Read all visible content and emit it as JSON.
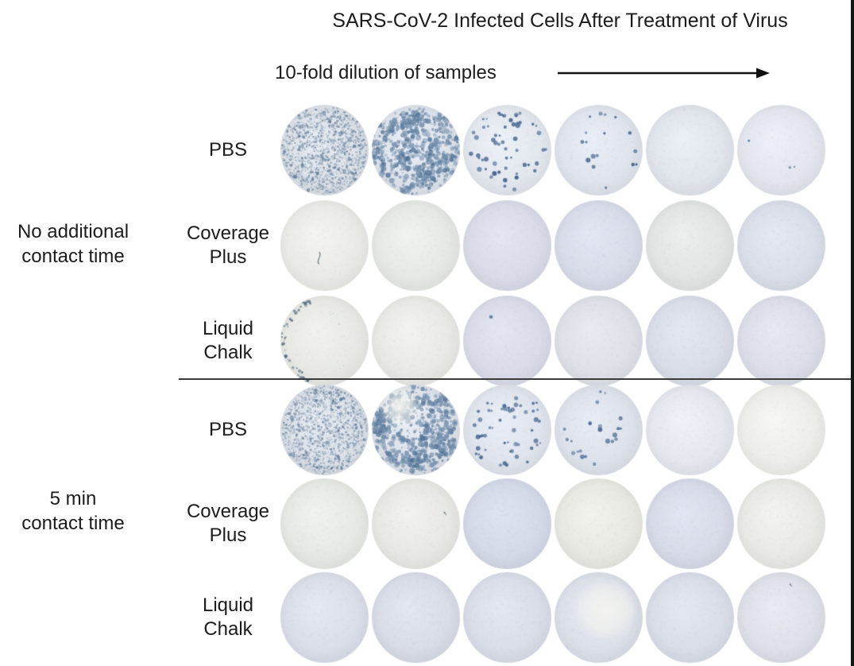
{
  "colors": {
    "background": "#ffffff",
    "text": "#1c1c1c",
    "divider": "#3a3a3a",
    "frame_border": "#161616",
    "arrow": "#111111",
    "plaque_dark": "#40608b",
    "plaque_mid": "#5d7d9f",
    "plaque_light": "#8aa0b5"
  },
  "figure": {
    "title": "SARS-CoV-2 Infected Cells After Treatment of Virus",
    "dilution_label": "10-fold dilution of samples",
    "dilution_arrow_icon": "right-arrow",
    "column_count": 6,
    "groups": [
      {
        "label_lines": [
          "No additional",
          "contact time"
        ],
        "rows": [
          {
            "label_lines": [
              "PBS"
            ],
            "wells": [
              {
                "tint": "#dee3e9",
                "pattern": "dense-fine",
                "count": 1400
              },
              {
                "tint": "#dfe4ec",
                "pattern": "dense-coarse",
                "count": 300
              },
              {
                "tint": "#e3e7ee",
                "pattern": "moderate",
                "count": 46
              },
              {
                "tint": "#e0e4ed",
                "pattern": "sparse",
                "count": 13
              },
              {
                "tint": "#e1e5ec",
                "pattern": "none",
                "count": 0
              },
              {
                "tint": "#e3e6ee",
                "pattern": "trace",
                "count": 2
              }
            ]
          },
          {
            "label_lines": [
              "Coverage",
              "Plus"
            ],
            "wells": [
              {
                "tint": "#eaebe7",
                "pattern": "none",
                "count": 0,
                "artifacts": [
                  {
                    "type": "fiber",
                    "x": 0.44,
                    "y": 0.64
                  }
                ]
              },
              {
                "tint": "#e7e9e7",
                "pattern": "none",
                "count": 0
              },
              {
                "tint": "#dadde9",
                "pattern": "none",
                "count": 0
              },
              {
                "tint": "#d9ddea",
                "pattern": "none",
                "count": 0
              },
              {
                "tint": "#e3e5e5",
                "pattern": "none",
                "count": 0
              },
              {
                "tint": "#dbdfe9",
                "pattern": "none",
                "count": 0
              }
            ]
          },
          {
            "label_lines": [
              "Liquid",
              "Chalk"
            ],
            "wells": [
              {
                "tint": "#e8e9e5",
                "pattern": "edge",
                "count": 42
              },
              {
                "tint": "#e9eae6",
                "pattern": "none",
                "count": 0
              },
              {
                "tint": "#dadde9",
                "pattern": "trace",
                "count": 1
              },
              {
                "tint": "#dee2e8",
                "pattern": "none",
                "count": 0
              },
              {
                "tint": "#dadee9",
                "pattern": "none",
                "count": 0
              },
              {
                "tint": "#dcdfe9",
                "pattern": "none",
                "count": 0
              }
            ]
          }
        ]
      },
      {
        "label_lines": [
          "5 min",
          "contact time"
        ],
        "rows": [
          {
            "label_lines": [
              "PBS"
            ],
            "wells": [
              {
                "tint": "#dde2e9",
                "pattern": "dense-fine",
                "count": 1350
              },
              {
                "tint": "#dee3eb",
                "pattern": "dense-coarse",
                "count": 320,
                "patch": {
                  "x": 0.33,
                  "y": 0.25,
                  "r": 0.24
                }
              },
              {
                "tint": "#e0e4ec",
                "pattern": "moderate",
                "count": 40
              },
              {
                "tint": "#dee2eb",
                "pattern": "sparse",
                "count": 16
              },
              {
                "tint": "#e5e8ee",
                "pattern": "none",
                "count": 0
              },
              {
                "tint": "#edeeea",
                "pattern": "none",
                "count": 0
              }
            ]
          },
          {
            "label_lines": [
              "Coverage",
              "Plus"
            ],
            "wells": [
              {
                "tint": "#e7e9e4",
                "pattern": "none",
                "count": 0,
                "artifacts": [
                  {
                    "type": "speck",
                    "x": 0.2,
                    "y": 0.06
                  }
                ]
              },
              {
                "tint": "#e8e9e5",
                "pattern": "none",
                "count": 0,
                "artifacts": [
                  {
                    "type": "speck",
                    "x": 0.82,
                    "y": 0.38
                  }
                ]
              },
              {
                "tint": "#d5dae8",
                "pattern": "none",
                "count": 0
              },
              {
                "tint": "#e9e9e3",
                "pattern": "none",
                "count": 0
              },
              {
                "tint": "#d8dce9",
                "pattern": "none",
                "count": 0
              },
              {
                "tint": "#e9eae6",
                "pattern": "none",
                "count": 0
              }
            ]
          },
          {
            "label_lines": [
              "Liquid",
              "Chalk"
            ],
            "wells": [
              {
                "tint": "#dbdfe9",
                "pattern": "none",
                "count": 0
              },
              {
                "tint": "#d9dde8",
                "pattern": "none",
                "count": 0
              },
              {
                "tint": "#dadee9",
                "pattern": "none",
                "count": 0
              },
              {
                "tint": "#dce0e9",
                "pattern": "none",
                "count": 0,
                "patch": {
                  "x": 0.58,
                  "y": 0.42,
                  "r": 0.36
                }
              },
              {
                "tint": "#dadee9",
                "pattern": "none",
                "count": 0
              },
              {
                "tint": "#dee1e9",
                "pattern": "none",
                "count": 0,
                "artifacts": [
                  {
                    "type": "speck",
                    "x": 0.6,
                    "y": 0.14
                  }
                ]
              }
            ]
          }
        ]
      }
    ]
  }
}
